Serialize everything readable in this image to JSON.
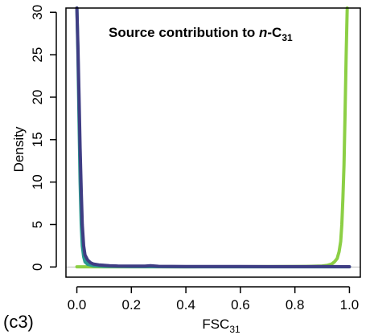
{
  "chart_data": {
    "type": "line",
    "title_main": "Source contribution to ",
    "title_italic": "n",
    "title_suffix": "-C",
    "title_subscript": "31",
    "xlabel_main": "FSC",
    "xlabel_subscript": "31",
    "ylabel": "Density",
    "panel_label": "(c3)",
    "xlim": [
      -0.04,
      1.04
    ],
    "ylim": [
      -1.2,
      30.5
    ],
    "xticks": [
      0.0,
      0.2,
      0.4,
      0.6,
      0.8,
      1.0
    ],
    "xtick_labels": [
      "0.0",
      "0.2",
      "0.4",
      "0.6",
      "0.8",
      "1.0"
    ],
    "yticks": [
      0,
      5,
      10,
      15,
      20,
      25,
      30
    ],
    "ytick_labels": [
      "0",
      "5",
      "10",
      "15",
      "20",
      "25",
      "30"
    ],
    "series": [
      {
        "color": "#8ccf45",
        "points": [
          [
            0.0,
            0.02
          ],
          [
            0.1,
            0.02
          ],
          [
            0.2,
            0.02
          ],
          [
            0.3,
            0.02
          ],
          [
            0.4,
            0.02
          ],
          [
            0.5,
            0.03
          ],
          [
            0.6,
            0.03
          ],
          [
            0.7,
            0.04
          ],
          [
            0.8,
            0.05
          ],
          [
            0.86,
            0.08
          ],
          [
            0.9,
            0.12
          ],
          [
            0.92,
            0.2
          ],
          [
            0.935,
            0.35
          ],
          [
            0.945,
            0.6
          ],
          [
            0.955,
            1.0
          ],
          [
            0.962,
            1.8
          ],
          [
            0.968,
            3.0
          ],
          [
            0.972,
            5.0
          ],
          [
            0.976,
            8.0
          ],
          [
            0.98,
            12.0
          ],
          [
            0.984,
            18.0
          ],
          [
            0.988,
            25.0
          ],
          [
            0.992,
            32.0
          ]
        ]
      },
      {
        "color": "#2a9a90",
        "points": [
          [
            0.0,
            32.0
          ],
          [
            0.004,
            25.0
          ],
          [
            0.008,
            17.0
          ],
          [
            0.012,
            10.0
          ],
          [
            0.016,
            5.0
          ],
          [
            0.02,
            2.5
          ],
          [
            0.025,
            1.2
          ],
          [
            0.03,
            0.6
          ],
          [
            0.04,
            0.3
          ],
          [
            0.06,
            0.15
          ],
          [
            0.1,
            0.08
          ],
          [
            0.2,
            0.04
          ],
          [
            0.4,
            0.02
          ],
          [
            0.6,
            0.02
          ],
          [
            0.8,
            0.02
          ],
          [
            1.0,
            0.02
          ]
        ]
      },
      {
        "color": "#3f3d84",
        "points": [
          [
            0.0,
            32.0
          ],
          [
            0.004,
            26.0
          ],
          [
            0.008,
            20.0
          ],
          [
            0.012,
            14.0
          ],
          [
            0.016,
            9.0
          ],
          [
            0.02,
            5.0
          ],
          [
            0.025,
            2.5
          ],
          [
            0.03,
            1.4
          ],
          [
            0.04,
            0.8
          ],
          [
            0.05,
            0.5
          ],
          [
            0.06,
            0.35
          ],
          [
            0.08,
            0.25
          ],
          [
            0.1,
            0.2
          ],
          [
            0.12,
            0.15
          ],
          [
            0.15,
            0.12
          ],
          [
            0.2,
            0.1
          ],
          [
            0.25,
            0.1
          ],
          [
            0.27,
            0.15
          ],
          [
            0.3,
            0.08
          ],
          [
            0.4,
            0.06
          ],
          [
            0.5,
            0.05
          ],
          [
            0.6,
            0.05
          ],
          [
            0.7,
            0.04
          ],
          [
            0.8,
            0.04
          ],
          [
            0.9,
            0.05
          ],
          [
            0.95,
            0.04
          ],
          [
            1.0,
            0.03
          ]
        ]
      }
    ],
    "baseline": {
      "y": 0,
      "color": "#bbbbbb"
    }
  }
}
